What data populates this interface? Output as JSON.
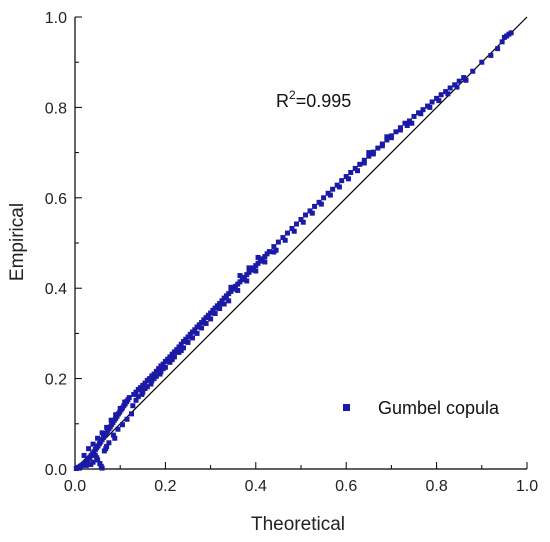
{
  "chart_data": {
    "type": "scatter",
    "title": "",
    "xlabel": "Theoretical",
    "ylabel": "Empirical",
    "xlim": [
      0.0,
      1.0
    ],
    "ylim": [
      0.0,
      1.0
    ],
    "xticks": [
      "0.0",
      "0.2",
      "0.4",
      "0.6",
      "0.8",
      "1.0"
    ],
    "yticks": [
      "0.0",
      "0.2",
      "0.4",
      "0.6",
      "0.8",
      "1.0"
    ],
    "grid": false,
    "legend_position": "bottom-right",
    "annotation": {
      "base": "R",
      "sup": "2",
      "rest": "=0.995"
    },
    "reference_line": {
      "from": [
        0,
        0
      ],
      "to": [
        1,
        1
      ],
      "color": "#000000"
    },
    "series": [
      {
        "name": "Gumbel copula",
        "marker": "square",
        "color": "#1a1aa6",
        "points": [
          [
            0.003,
            0.001
          ],
          [
            0.006,
            0.003
          ],
          [
            0.009,
            0.004
          ],
          [
            0.012,
            0.006
          ],
          [
            0.015,
            0.008
          ],
          [
            0.018,
            0.01
          ],
          [
            0.021,
            0.012
          ],
          [
            0.024,
            0.015
          ],
          [
            0.027,
            0.018
          ],
          [
            0.03,
            0.022
          ],
          [
            0.033,
            0.026
          ],
          [
            0.036,
            0.03
          ],
          [
            0.039,
            0.034
          ],
          [
            0.042,
            0.038
          ],
          [
            0.045,
            0.043
          ],
          [
            0.048,
            0.047
          ],
          [
            0.051,
            0.051
          ],
          [
            0.054,
            0.056
          ],
          [
            0.057,
            0.06
          ],
          [
            0.06,
            0.065
          ],
          [
            0.063,
            0.07
          ],
          [
            0.066,
            0.074
          ],
          [
            0.069,
            0.079
          ],
          [
            0.072,
            0.084
          ],
          [
            0.075,
            0.089
          ],
          [
            0.078,
            0.093
          ],
          [
            0.081,
            0.098
          ],
          [
            0.084,
            0.103
          ],
          [
            0.087,
            0.108
          ],
          [
            0.09,
            0.112
          ],
          [
            0.093,
            0.117
          ],
          [
            0.096,
            0.122
          ],
          [
            0.099,
            0.126
          ],
          [
            0.102,
            0.131
          ],
          [
            0.105,
            0.135
          ],
          [
            0.108,
            0.14
          ],
          [
            0.111,
            0.144
          ],
          [
            0.114,
            0.149
          ],
          [
            0.117,
            0.153
          ],
          [
            0.12,
            0.158
          ],
          [
            0.02,
            0.03
          ],
          [
            0.03,
            0.045
          ],
          [
            0.04,
            0.055
          ],
          [
            0.05,
            0.068
          ],
          [
            0.06,
            0.08
          ],
          [
            0.07,
            0.092
          ],
          [
            0.08,
            0.108
          ],
          [
            0.09,
            0.12
          ],
          [
            0.1,
            0.134
          ],
          [
            0.11,
            0.148
          ],
          [
            0.045,
            0.03
          ],
          [
            0.05,
            0.02
          ],
          [
            0.055,
            0.012
          ],
          [
            0.058,
            0.006
          ],
          [
            0.06,
            0.002
          ],
          [
            0.04,
            0.015
          ],
          [
            0.035,
            0.01
          ],
          [
            0.065,
            0.04
          ],
          [
            0.07,
            0.05
          ],
          [
            0.075,
            0.058
          ],
          [
            0.085,
            0.075
          ],
          [
            0.095,
            0.088
          ],
          [
            0.105,
            0.098
          ],
          [
            0.115,
            0.11
          ],
          [
            0.125,
            0.122
          ],
          [
            0.01,
            0.002
          ],
          [
            0.025,
            0.008
          ],
          [
            0.048,
            0.025
          ],
          [
            0.068,
            0.045
          ],
          [
            0.088,
            0.068
          ],
          [
            0.13,
            0.165
          ],
          [
            0.135,
            0.17
          ],
          [
            0.14,
            0.176
          ],
          [
            0.145,
            0.18
          ],
          [
            0.15,
            0.185
          ],
          [
            0.155,
            0.19
          ],
          [
            0.16,
            0.196
          ],
          [
            0.165,
            0.2
          ],
          [
            0.17,
            0.206
          ],
          [
            0.175,
            0.21
          ],
          [
            0.18,
            0.216
          ],
          [
            0.185,
            0.222
          ],
          [
            0.19,
            0.228
          ],
          [
            0.195,
            0.232
          ],
          [
            0.2,
            0.238
          ],
          [
            0.205,
            0.243
          ],
          [
            0.21,
            0.248
          ],
          [
            0.215,
            0.254
          ],
          [
            0.22,
            0.259
          ],
          [
            0.225,
            0.264
          ],
          [
            0.14,
            0.16
          ],
          [
            0.15,
            0.17
          ],
          [
            0.16,
            0.182
          ],
          [
            0.17,
            0.195
          ],
          [
            0.18,
            0.205
          ],
          [
            0.19,
            0.215
          ],
          [
            0.2,
            0.225
          ],
          [
            0.21,
            0.236
          ],
          [
            0.22,
            0.248
          ],
          [
            0.23,
            0.258
          ],
          [
            0.135,
            0.152
          ],
          [
            0.155,
            0.178
          ],
          [
            0.175,
            0.2
          ],
          [
            0.195,
            0.222
          ],
          [
            0.215,
            0.242
          ],
          [
            0.235,
            0.262
          ],
          [
            0.128,
            0.14
          ],
          [
            0.148,
            0.165
          ],
          [
            0.168,
            0.188
          ],
          [
            0.188,
            0.21
          ],
          [
            0.23,
            0.27
          ],
          [
            0.235,
            0.276
          ],
          [
            0.24,
            0.282
          ],
          [
            0.245,
            0.287
          ],
          [
            0.25,
            0.292
          ],
          [
            0.255,
            0.298
          ],
          [
            0.26,
            0.303
          ],
          [
            0.265,
            0.308
          ],
          [
            0.27,
            0.314
          ],
          [
            0.275,
            0.319
          ],
          [
            0.28,
            0.324
          ],
          [
            0.285,
            0.33
          ],
          [
            0.29,
            0.335
          ],
          [
            0.295,
            0.34
          ],
          [
            0.3,
            0.345
          ],
          [
            0.305,
            0.351
          ],
          [
            0.31,
            0.356
          ],
          [
            0.315,
            0.361
          ],
          [
            0.32,
            0.366
          ],
          [
            0.325,
            0.372
          ],
          [
            0.24,
            0.268
          ],
          [
            0.25,
            0.28
          ],
          [
            0.26,
            0.29
          ],
          [
            0.27,
            0.3
          ],
          [
            0.28,
            0.312
          ],
          [
            0.29,
            0.322
          ],
          [
            0.3,
            0.332
          ],
          [
            0.31,
            0.344
          ],
          [
            0.32,
            0.355
          ],
          [
            0.33,
            0.365
          ],
          [
            0.33,
            0.378
          ],
          [
            0.335,
            0.383
          ],
          [
            0.34,
            0.388
          ],
          [
            0.345,
            0.393
          ],
          [
            0.35,
            0.398
          ],
          [
            0.355,
            0.404
          ],
          [
            0.36,
            0.409
          ],
          [
            0.365,
            0.414
          ],
          [
            0.37,
            0.419
          ],
          [
            0.375,
            0.424
          ],
          [
            0.38,
            0.43
          ],
          [
            0.385,
            0.435
          ],
          [
            0.39,
            0.44
          ],
          [
            0.395,
            0.445
          ],
          [
            0.4,
            0.45
          ],
          [
            0.405,
            0.455
          ],
          [
            0.41,
            0.46
          ],
          [
            0.415,
            0.465
          ],
          [
            0.42,
            0.47
          ],
          [
            0.425,
            0.476
          ],
          [
            0.34,
            0.372
          ],
          [
            0.36,
            0.395
          ],
          [
            0.38,
            0.416
          ],
          [
            0.4,
            0.438
          ],
          [
            0.42,
            0.458
          ],
          [
            0.44,
            0.48
          ],
          [
            0.345,
            0.402
          ],
          [
            0.365,
            0.428
          ],
          [
            0.385,
            0.445
          ],
          [
            0.405,
            0.468
          ],
          [
            0.43,
            0.481
          ],
          [
            0.44,
            0.492
          ],
          [
            0.45,
            0.502
          ],
          [
            0.46,
            0.512
          ],
          [
            0.47,
            0.522
          ],
          [
            0.48,
            0.532
          ],
          [
            0.49,
            0.542
          ],
          [
            0.5,
            0.552
          ],
          [
            0.51,
            0.562
          ],
          [
            0.52,
            0.571
          ],
          [
            0.53,
            0.581
          ],
          [
            0.54,
            0.59
          ],
          [
            0.55,
            0.6
          ],
          [
            0.56,
            0.61
          ],
          [
            0.57,
            0.619
          ],
          [
            0.58,
            0.628
          ],
          [
            0.59,
            0.638
          ],
          [
            0.6,
            0.647
          ],
          [
            0.61,
            0.656
          ],
          [
            0.62,
            0.665
          ],
          [
            0.445,
            0.484
          ],
          [
            0.465,
            0.506
          ],
          [
            0.485,
            0.526
          ],
          [
            0.505,
            0.546
          ],
          [
            0.525,
            0.566
          ],
          [
            0.545,
            0.586
          ],
          [
            0.565,
            0.606
          ],
          [
            0.585,
            0.624
          ],
          [
            0.605,
            0.642
          ],
          [
            0.625,
            0.66
          ],
          [
            0.63,
            0.674
          ],
          [
            0.64,
            0.683
          ],
          [
            0.65,
            0.692
          ],
          [
            0.66,
            0.701
          ],
          [
            0.67,
            0.71
          ],
          [
            0.68,
            0.719
          ],
          [
            0.69,
            0.728
          ],
          [
            0.7,
            0.737
          ],
          [
            0.71,
            0.746
          ],
          [
            0.72,
            0.755
          ],
          [
            0.64,
            0.677
          ],
          [
            0.66,
            0.697
          ],
          [
            0.68,
            0.715
          ],
          [
            0.7,
            0.733
          ],
          [
            0.72,
            0.75
          ],
          [
            0.65,
            0.7
          ],
          [
            0.69,
            0.735
          ],
          [
            0.73,
            0.765
          ],
          [
            0.735,
            0.76
          ],
          [
            0.74,
            0.77
          ],
          [
            0.75,
            0.78
          ],
          [
            0.76,
            0.788
          ],
          [
            0.77,
            0.795
          ],
          [
            0.78,
            0.803
          ],
          [
            0.79,
            0.812
          ],
          [
            0.8,
            0.82
          ],
          [
            0.81,
            0.828
          ],
          [
            0.82,
            0.835
          ],
          [
            0.83,
            0.843
          ],
          [
            0.84,
            0.85
          ],
          [
            0.85,
            0.858
          ],
          [
            0.86,
            0.866
          ],
          [
            0.745,
            0.765
          ],
          [
            0.765,
            0.786
          ],
          [
            0.785,
            0.8
          ],
          [
            0.805,
            0.815
          ],
          [
            0.825,
            0.83
          ],
          [
            0.845,
            0.845
          ],
          [
            0.865,
            0.86
          ],
          [
            0.88,
            0.88
          ],
          [
            0.9,
            0.9
          ],
          [
            0.92,
            0.915
          ],
          [
            0.935,
            0.93
          ],
          [
            0.945,
            0.945
          ],
          [
            0.95,
            0.955
          ],
          [
            0.955,
            0.958
          ],
          [
            0.96,
            0.962
          ],
          [
            0.965,
            0.965
          ]
        ]
      }
    ]
  }
}
